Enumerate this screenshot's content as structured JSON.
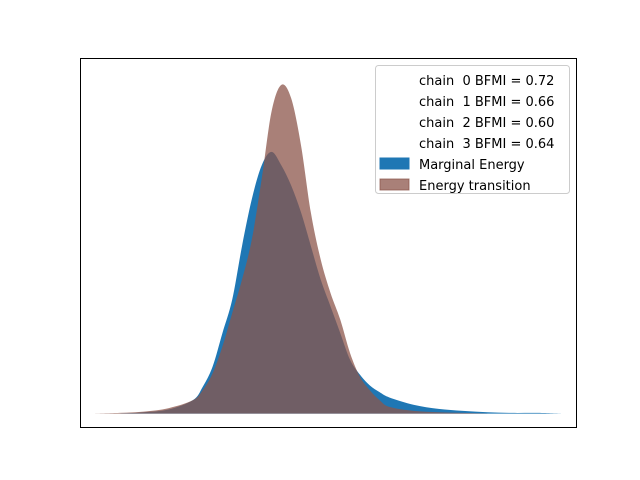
{
  "chart_data": {
    "type": "area",
    "title": "",
    "xlabel": "",
    "ylabel": "",
    "x_ticks_visible": false,
    "y_ticks_visible": false,
    "grid": false,
    "legend_placement": "top-right",
    "xlim": [
      -4.3,
      5.8
    ],
    "ylim": [
      -0.02,
      0.53
    ],
    "series": [
      {
        "name": "Marginal Energy",
        "color": "#1f77b4",
        "alpha": 1.0,
        "x": [
          -4.0,
          -3.5,
          -3.0,
          -2.5,
          -2.0,
          -1.8,
          -1.6,
          -1.4,
          -1.2,
          -1.0,
          -0.8,
          -0.6,
          -0.4,
          -0.2,
          0.0,
          0.2,
          0.4,
          0.6,
          0.8,
          1.0,
          1.2,
          1.4,
          1.6,
          1.8,
          2.0,
          2.5,
          3.0,
          3.5,
          4.0,
          4.5,
          5.0,
          5.5
        ],
        "y": [
          0.0,
          0.0,
          0.002,
          0.006,
          0.02,
          0.04,
          0.07,
          0.12,
          0.17,
          0.25,
          0.32,
          0.37,
          0.39,
          0.37,
          0.34,
          0.3,
          0.25,
          0.2,
          0.16,
          0.12,
          0.08,
          0.058,
          0.042,
          0.032,
          0.024,
          0.013,
          0.007,
          0.004,
          0.002,
          0.001,
          0.001,
          0.0
        ]
      },
      {
        "name": "Energy transition",
        "color": "#8c564b",
        "alpha": 0.75,
        "x": [
          -4.0,
          -3.5,
          -3.0,
          -2.5,
          -2.0,
          -1.8,
          -1.6,
          -1.4,
          -1.2,
          -1.0,
          -0.8,
          -0.6,
          -0.4,
          -0.2,
          0.0,
          0.2,
          0.4,
          0.6,
          0.8,
          1.0,
          1.2,
          1.4,
          1.6,
          1.8,
          2.0,
          2.5,
          3.0,
          3.5,
          4.0
        ],
        "y": [
          0.0,
          0.001,
          0.003,
          0.008,
          0.02,
          0.035,
          0.06,
          0.1,
          0.15,
          0.2,
          0.26,
          0.35,
          0.45,
          0.49,
          0.47,
          0.4,
          0.3,
          0.23,
          0.18,
          0.14,
          0.09,
          0.055,
          0.035,
          0.02,
          0.01,
          0.004,
          0.002,
          0.001,
          0.0
        ]
      }
    ],
    "legend_entries": [
      {
        "label": "chain  0 BFMI = 0.72",
        "marker": "none"
      },
      {
        "label": "chain  1 BFMI = 0.66",
        "marker": "none"
      },
      {
        "label": "chain  2 BFMI = 0.60",
        "marker": "none"
      },
      {
        "label": "chain  3 BFMI = 0.64",
        "marker": "none"
      },
      {
        "label": "Marginal Energy",
        "marker": "patch",
        "color": "#1f77b4",
        "alpha": 1.0
      },
      {
        "label": "Energy transition",
        "marker": "patch",
        "color": "#8c564b",
        "alpha": 0.75
      }
    ]
  }
}
